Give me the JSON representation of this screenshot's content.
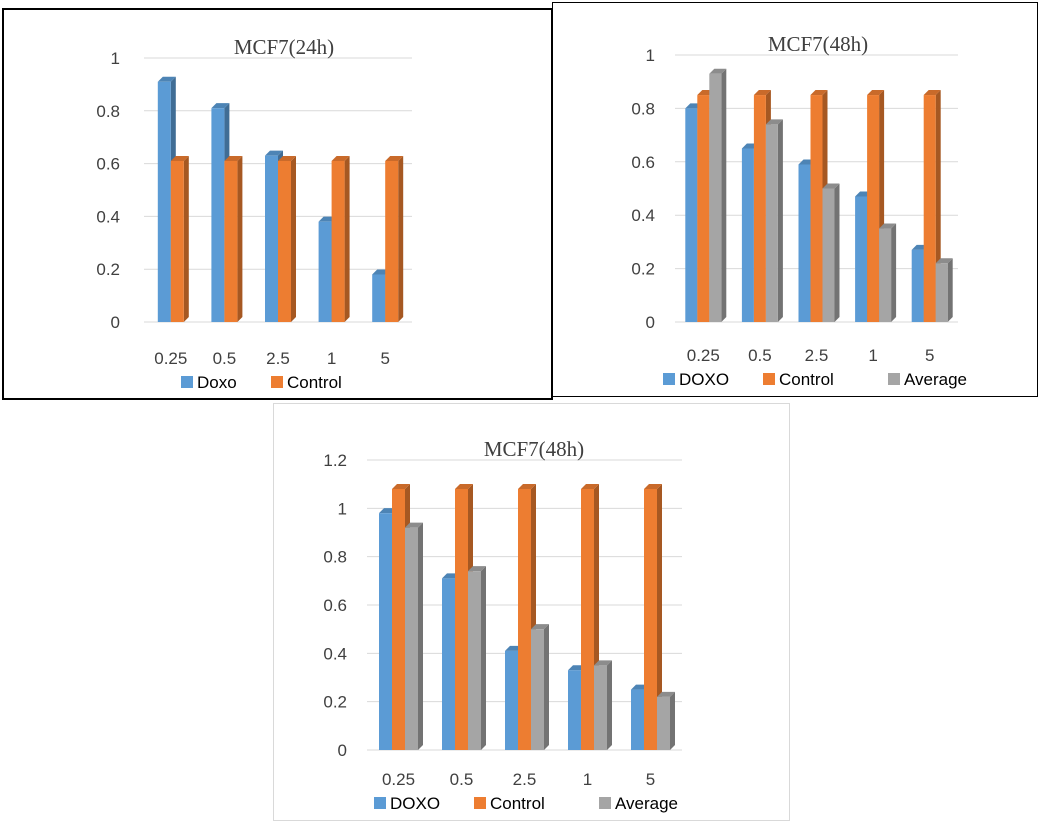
{
  "chart_data": [
    {
      "type": "bar",
      "title": "MCF7(24h)",
      "categories": [
        "0.25",
        "0.5",
        "2.5",
        "1",
        "5"
      ],
      "ylim": [
        0,
        1
      ],
      "yticks": [
        "0",
        "0.2",
        "0.4",
        "0.6",
        "0.8",
        "1"
      ],
      "grid": true,
      "legend_position": "bottom",
      "series": [
        {
          "name": "Doxo",
          "color": "#5b9bd5",
          "values": [
            0.91,
            0.81,
            0.63,
            0.38,
            0.18
          ]
        },
        {
          "name": "Control",
          "color": "#ed7d31",
          "values": [
            0.61,
            0.61,
            0.61,
            0.61,
            0.61
          ]
        }
      ]
    },
    {
      "type": "bar",
      "title": "MCF7(48h)",
      "categories": [
        "0.25",
        "0.5",
        "2.5",
        "1",
        "5"
      ],
      "ylim": [
        0,
        1
      ],
      "yticks": [
        "0",
        "0.2",
        "0.4",
        "0.6",
        "0.8",
        "1"
      ],
      "grid": true,
      "legend_position": "bottom",
      "series": [
        {
          "name": "DOXO",
          "color": "#5b9bd5",
          "values": [
            0.8,
            0.65,
            0.59,
            0.47,
            0.27
          ]
        },
        {
          "name": "Control",
          "color": "#ed7d31",
          "values": [
            0.85,
            0.85,
            0.85,
            0.85,
            0.85
          ]
        },
        {
          "name": "Average",
          "color": "#a5a5a5",
          "values": [
            0.93,
            0.74,
            0.5,
            0.35,
            0.22
          ]
        }
      ]
    },
    {
      "type": "bar",
      "title": "MCF7(48h)",
      "categories": [
        "0.25",
        "0.5",
        "2.5",
        "1",
        "5"
      ],
      "ylim": [
        0,
        1.2
      ],
      "yticks": [
        "0",
        "0.2",
        "0.4",
        "0.6",
        "0.8",
        "1",
        "1.2"
      ],
      "grid": true,
      "legend_position": "bottom",
      "series": [
        {
          "name": "DOXO",
          "color": "#5b9bd5",
          "values": [
            0.98,
            0.71,
            0.41,
            0.33,
            0.25
          ]
        },
        {
          "name": "Control",
          "color": "#ed7d31",
          "values": [
            1.08,
            1.08,
            1.08,
            1.08,
            1.08
          ]
        },
        {
          "name": "Average",
          "color": "#a5a5a5",
          "values": [
            0.92,
            0.74,
            0.5,
            0.35,
            0.22
          ]
        }
      ]
    }
  ]
}
